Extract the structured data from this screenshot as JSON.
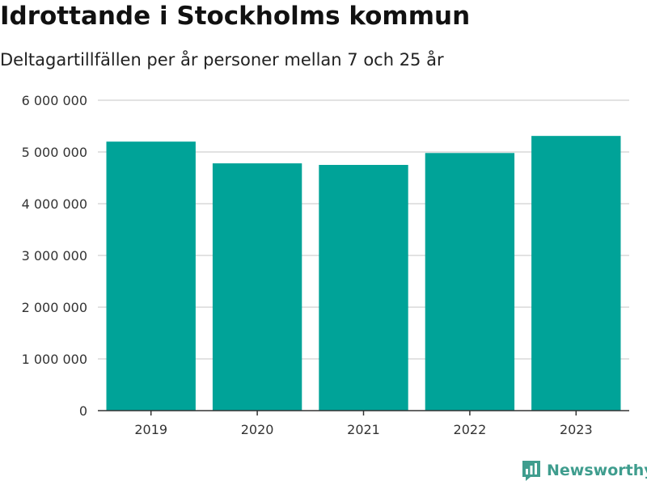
{
  "chart_data": {
    "type": "bar",
    "title": "Idrottande i Stockholms kommun",
    "subtitle": "Deltagartillfällen per år personer mellan 7 och 25 år",
    "xlabel": "",
    "ylabel": "",
    "categories": [
      "2019",
      "2020",
      "2021",
      "2022",
      "2023"
    ],
    "values": [
      5200000,
      4780000,
      4750000,
      4980000,
      5310000
    ],
    "ylim": [
      0,
      6000000
    ],
    "yticks": [
      0,
      1000000,
      2000000,
      3000000,
      4000000,
      5000000,
      6000000
    ],
    "ytick_labels": [
      "0",
      "1 000 000",
      "2 000 000",
      "3 000 000",
      "4 000 000",
      "5 000 000",
      "6 000 000"
    ],
    "grid": true,
    "bar_color": "#00a398",
    "grid_color": "#d9d9d9",
    "axis_color": "#333333"
  },
  "brand": {
    "name": "Newsworthy",
    "icon": "newsworthy-logo-icon",
    "color": "#3f9d8e"
  }
}
